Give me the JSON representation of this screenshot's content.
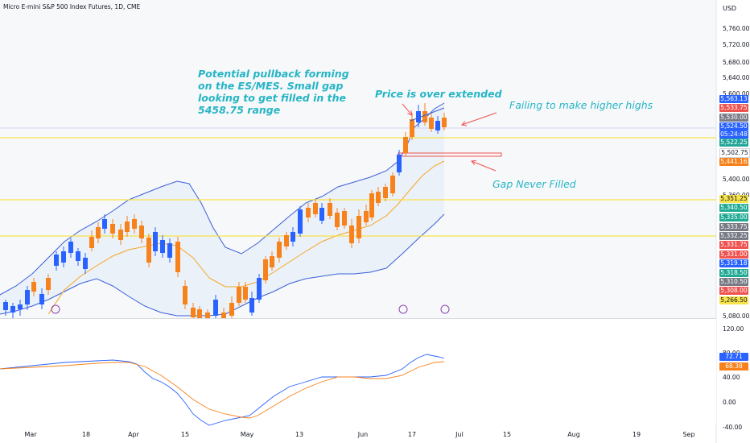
{
  "header": {
    "title": "Micro E-mini S&P 500 Index Futures, 1D, CME",
    "currency": "USD"
  },
  "annotations": {
    "pullback": "Potential pullback forming\non the ES/MES. Small gap\nlooking to get filled in the\n5458.75 range",
    "overextended": "Price is over extended",
    "higher_highs": "Failing to make higher highs",
    "gap": "Gap Never Filled"
  },
  "colors": {
    "up": "#f7821b",
    "down": "#2962ff",
    "annotation": "#26b5c5",
    "band": "#3b5fd9",
    "basis": "#f5a623",
    "hline": "#f7e34a"
  },
  "price_axis": {
    "ticks": [
      "5,760.00",
      "5,720.00",
      "5,680.00",
      "5,640.00",
      "5,600.00",
      "5,400.00",
      "5,360.00",
      "5,080.00"
    ],
    "labels": [
      {
        "text": "5,563.13",
        "color": "#2962ff"
      },
      {
        "text": "5,533.75",
        "color": "#ef5350"
      },
      {
        "text": "5,530.00",
        "color": "#787b86"
      },
      {
        "text": "5,524.50",
        "color": "#2962ff"
      },
      {
        "text": "05:24:48",
        "color": "#2962ff"
      },
      {
        "text": "5,522.25",
        "color": "#26a69a"
      },
      {
        "text": "5,502.75",
        "color": "#ffffff"
      },
      {
        "text": "5,441.16",
        "color": "#f7821b"
      },
      {
        "text": "5,351.25",
        "color": "#f7e34a"
      },
      {
        "text": "5,340.50",
        "color": "#22ab94"
      },
      {
        "text": "5,335.00",
        "color": "#22ab94"
      },
      {
        "text": "5,333.75",
        "color": "#787b86"
      },
      {
        "text": "5,332.25",
        "color": "#787b86"
      },
      {
        "text": "5,331.75",
        "color": "#ef5350"
      },
      {
        "text": "5,331.00",
        "color": "#ef5350"
      },
      {
        "text": "5,319.18",
        "color": "#2962ff"
      },
      {
        "text": "5,318.50",
        "color": "#22ab94"
      },
      {
        "text": "5,310.50",
        "color": "#787b86"
      },
      {
        "text": "5,308.00",
        "color": "#ef5350"
      },
      {
        "text": "5,266.50",
        "color": "#f7e34a"
      }
    ]
  },
  "oscillator_axis": {
    "ticks": [
      "120.00",
      "80.00",
      "40.00",
      "0.00",
      "-40.00"
    ],
    "labels": [
      {
        "text": "72.71",
        "color": "#2962ff"
      },
      {
        "text": "68.38",
        "color": "#f7821b"
      }
    ]
  },
  "time_axis": [
    "Mar",
    "18",
    "Apr",
    "15",
    "May",
    "13",
    "Jun",
    "17",
    "Jul",
    "15",
    "Aug",
    "19",
    "Sep"
  ]
}
